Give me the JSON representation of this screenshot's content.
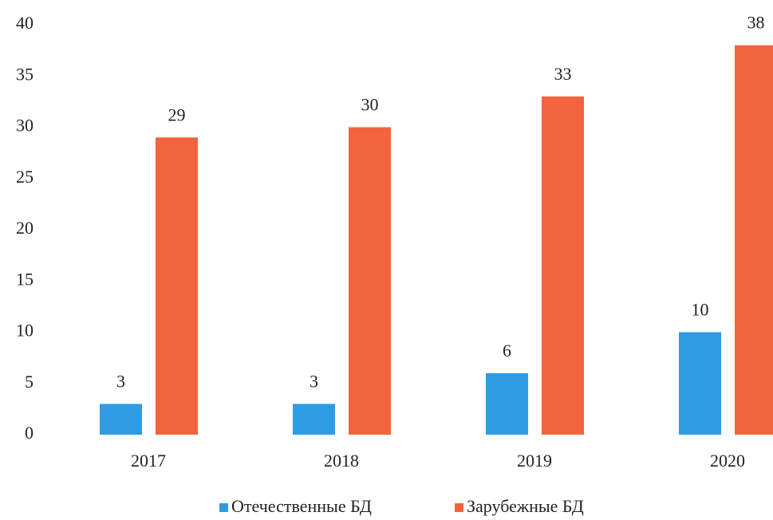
{
  "chart_data": {
    "type": "bar",
    "categories": [
      "2017",
      "2018",
      "2019",
      "2020"
    ],
    "series": [
      {
        "name": "Отечественные БД",
        "color": "#2f9be3",
        "values": [
          3,
          3,
          6,
          10
        ]
      },
      {
        "name": "Зарубежные БД",
        "color": "#f2643e",
        "values": [
          29,
          30,
          33,
          38
        ]
      }
    ],
    "ylim": [
      0,
      40
    ],
    "yticks": [
      0,
      5,
      10,
      15,
      20,
      25,
      30,
      35,
      40
    ],
    "grid": false,
    "legend": "bottom"
  }
}
